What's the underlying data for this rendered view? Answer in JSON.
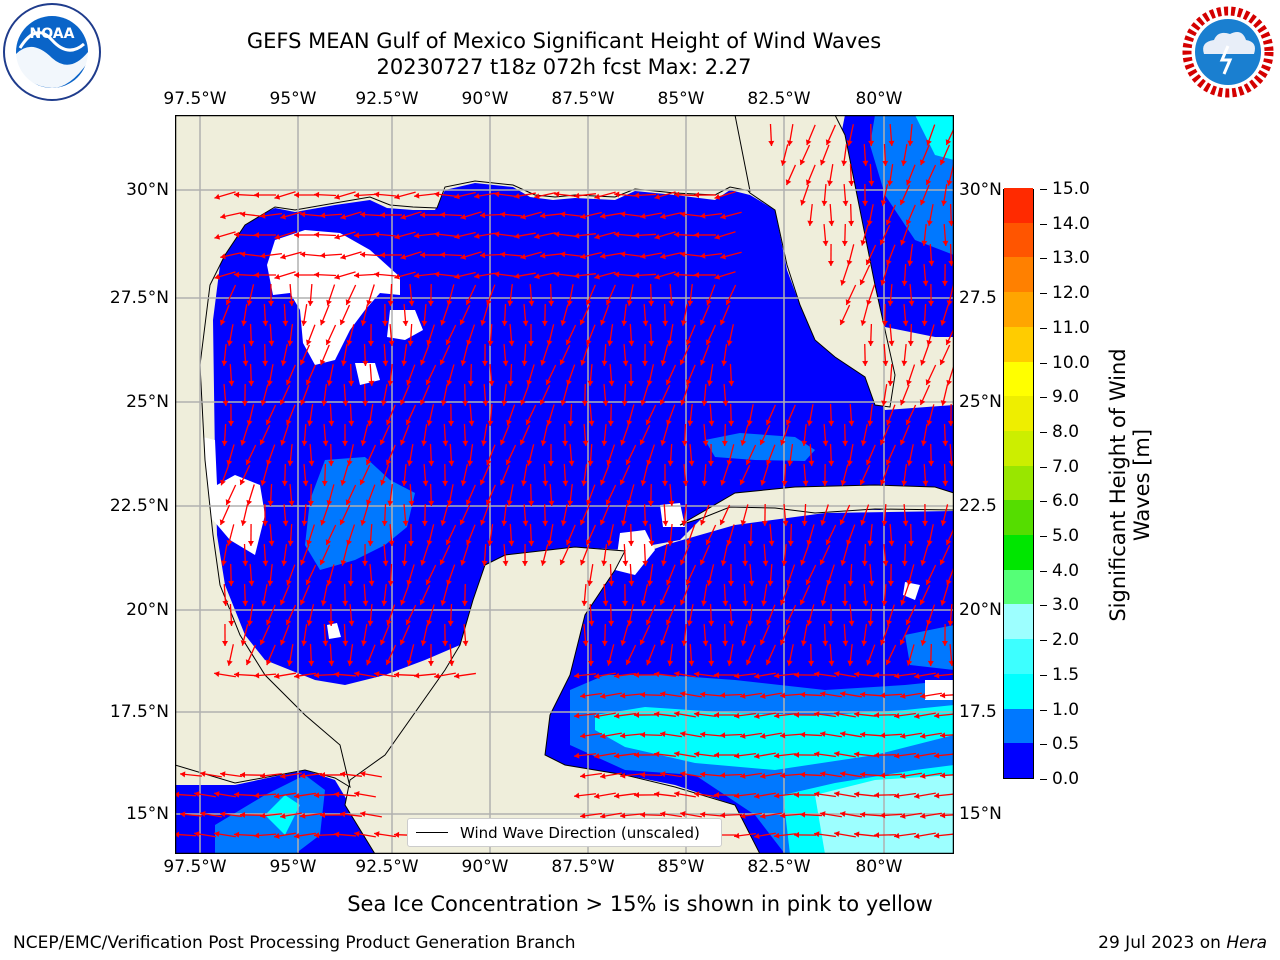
{
  "header": {
    "title_line1": "GEFS MEAN Gulf of Mexico Significant Height of Wind Waves",
    "title_line2": "20230727 t18z 072h fcst   Max: 2.27"
  },
  "map": {
    "lon_labels": [
      "97.5°W",
      "95°W",
      "92.5°W",
      "90°W",
      "87.5°W",
      "85°W",
      "82.5°W",
      "80°W"
    ],
    "lat_labels": [
      "30°N",
      "27.5°N",
      "25°N",
      "22.5°N",
      "20°N",
      "17.5°N",
      "15°N"
    ],
    "right_lat_labels": [
      "30°N",
      "27.5",
      "25°N",
      "22.5",
      "20°N",
      "17.5",
      "15°N"
    ],
    "legend_label": "Wind Wave Direction (unscaled)",
    "colors": {
      "land": "#efeedb",
      "level0": "#0000ff",
      "level1": "#0078ff",
      "level2": "#00ffff",
      "level3": "#9dffff",
      "arrow": "#ff0000",
      "grid": "#b0b0b0"
    }
  },
  "colorbar": {
    "ticks": [
      "0.0",
      "0.5",
      "1.0",
      "1.5",
      "2.0",
      "3.0",
      "4.0",
      "5.0",
      "6.0",
      "7.0",
      "8.0",
      "9.0",
      "10.0",
      "11.0",
      "12.0",
      "13.0",
      "14.0",
      "15.0"
    ],
    "colors": [
      "#0000ff",
      "#0078ff",
      "#00ffff",
      "#3dffff",
      "#9dffff",
      "#55ff77",
      "#00e600",
      "#55dd00",
      "#99e600",
      "#ccee00",
      "#eeee00",
      "#ffff00",
      "#ffcc00",
      "#ffa500",
      "#ff8000",
      "#ff5500",
      "#ff2a00",
      "#ff0000"
    ],
    "label_line1": "Significant Height of Wind",
    "label_line2": "Waves [m]"
  },
  "caption": "Sea Ice Concentration > 15% is shown in pink to yellow",
  "footer": {
    "left": "NCEP/EMC/Verification Post Processing Product Generation Branch",
    "right_date": "29 Jul 2023 on ",
    "right_host": "Hera"
  },
  "logos": {
    "noaa": "NOAA",
    "nws": "NATIONAL WEATHER SERVICE"
  }
}
